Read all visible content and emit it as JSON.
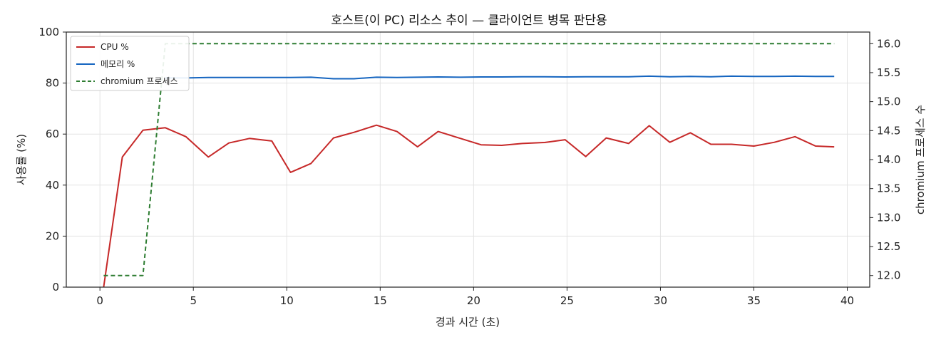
{
  "chart_data": {
    "type": "line",
    "title": "호스트(이 PC) 리소스 추이 — 클라이언트 병목 판단용",
    "xlabel": "경과 시간 (초)",
    "ylabel": "사용률 (%)",
    "y2label": "chromium 프로세스 수",
    "xlim": [
      -1.8,
      41.2
    ],
    "ylim": [
      0,
      100
    ],
    "y2lim": [
      11.8,
      16.2
    ],
    "xticks": [
      0,
      5,
      10,
      15,
      20,
      25,
      30,
      35,
      40
    ],
    "yticks": [
      0,
      20,
      40,
      60,
      80,
      100
    ],
    "y2ticks": [
      "12.0",
      "12.5",
      "13.0",
      "13.5",
      "14.0",
      "14.5",
      "15.0",
      "15.5",
      "16.0"
    ],
    "grid": true,
    "legend_position": "top-left",
    "series": [
      {
        "name": "CPU %",
        "axis": "left",
        "color": "#c62828",
        "style": "solid",
        "x": [
          0.2,
          1.2,
          2.3,
          3.5,
          4.6,
          5.8,
          6.9,
          8.0,
          9.2,
          10.2,
          11.3,
          12.5,
          13.6,
          14.8,
          15.9,
          17.0,
          18.1,
          19.3,
          20.4,
          21.5,
          22.6,
          23.8,
          24.9,
          26.0,
          27.1,
          28.3,
          29.4,
          30.5,
          31.6,
          32.7,
          33.8,
          35.0,
          36.1,
          37.2,
          38.3,
          39.3
        ],
        "values": [
          0,
          51,
          61.5,
          62.5,
          59,
          51,
          56.5,
          58.3,
          57.3,
          45,
          48.5,
          58.5,
          60.7,
          63.5,
          61,
          55,
          61,
          58.3,
          55.8,
          55.6,
          56.3,
          56.7,
          57.8,
          51.2,
          58.5,
          56.3,
          63.3,
          56.8,
          60.5,
          56,
          56,
          55.3,
          56.8,
          59,
          55.3,
          55
        ]
      },
      {
        "name": "메모리 %",
        "axis": "left",
        "color": "#1565c0",
        "style": "solid",
        "x": [
          3.5,
          4.6,
          5.8,
          6.9,
          8.0,
          9.2,
          10.2,
          11.3,
          12.5,
          13.6,
          14.8,
          15.9,
          17.0,
          18.1,
          19.3,
          20.4,
          21.5,
          22.6,
          23.8,
          24.9,
          26.0,
          27.1,
          28.3,
          29.4,
          30.5,
          31.6,
          32.7,
          33.8,
          35.0,
          36.1,
          37.2,
          38.3,
          39.3
        ],
        "values": [
          82,
          82,
          82.2,
          82.2,
          82.2,
          82.2,
          82.2,
          82.3,
          81.7,
          81.7,
          82.3,
          82.2,
          82.3,
          82.4,
          82.3,
          82.4,
          82.4,
          82.5,
          82.5,
          82.4,
          82.5,
          82.5,
          82.5,
          82.7,
          82.5,
          82.6,
          82.5,
          82.7,
          82.6,
          82.6,
          82.7,
          82.6,
          82.6
        ]
      },
      {
        "name": "chromium 프로세스",
        "axis": "right",
        "color": "#2e7d32",
        "style": "dashed",
        "x": [
          0.2,
          1.2,
          2.3,
          3.5,
          4.6,
          10.2,
          20.4,
          30.5,
          39.3
        ],
        "values": [
          12,
          12,
          12,
          16,
          16,
          16,
          16,
          16,
          16
        ]
      }
    ]
  }
}
